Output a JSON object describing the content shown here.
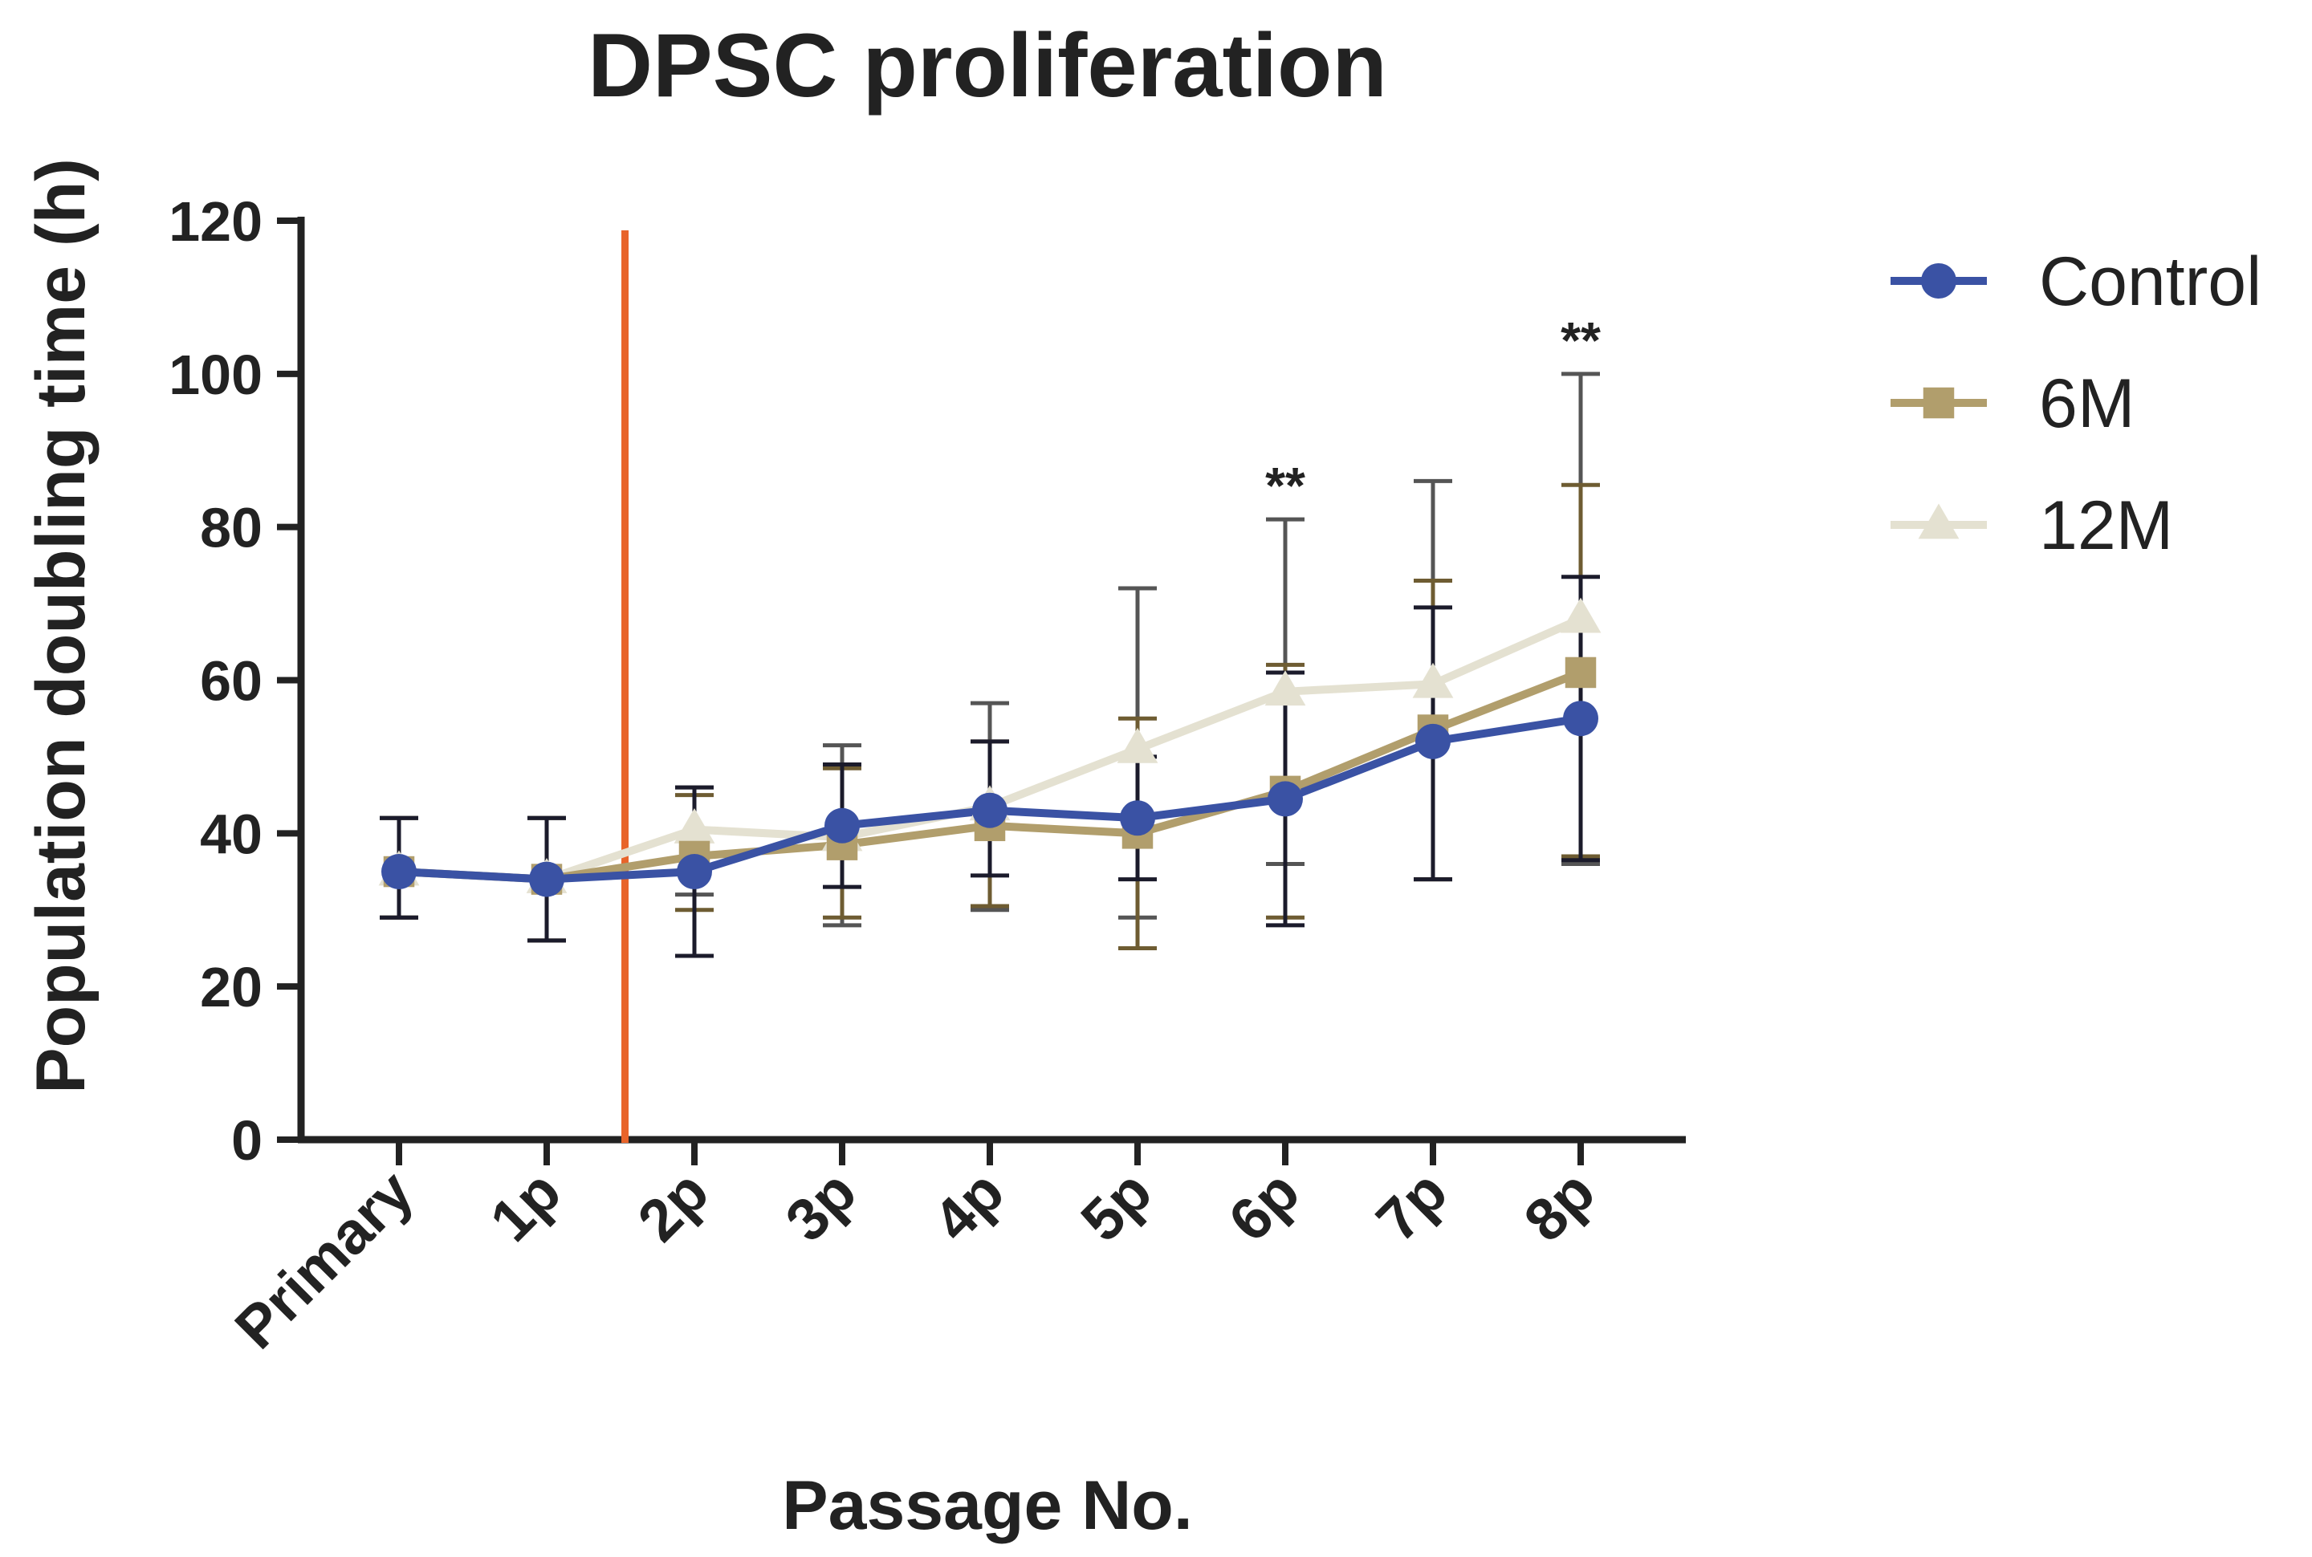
{
  "chart_data": {
    "type": "line",
    "title": "DPSC proliferation",
    "xlabel": "Passage No.",
    "ylabel": "Population doubling time (h)",
    "ylim": [
      0,
      120
    ],
    "yticks": [
      0,
      20,
      40,
      60,
      80,
      100,
      120
    ],
    "categories": [
      "Primary",
      "1p",
      "2p",
      "3p",
      "4p",
      "5p",
      "6p",
      "7p",
      "8p"
    ],
    "vline_after_category": "1p",
    "vline_color": "#e8642a",
    "series": [
      {
        "name": "12M",
        "color": "#e4e1d1",
        "err_color": "#555555",
        "marker": "triangle",
        "values": [
          35,
          34,
          40.5,
          39.5,
          43.5,
          51,
          58.5,
          59.5,
          68
        ],
        "err_low": [
          29,
          26,
          32,
          28,
          30,
          29,
          36,
          34,
          36
        ],
        "err_high": [
          42,
          42,
          46,
          51.5,
          57,
          72,
          81,
          86,
          100
        ]
      },
      {
        "name": "6M",
        "color": "#b19e6c",
        "err_color": "#6e5c32",
        "marker": "square",
        "values": [
          35,
          34,
          37,
          38.5,
          41,
          40,
          45.5,
          53.5,
          61
        ],
        "err_low": [
          29,
          26,
          30,
          29,
          30.5,
          25,
          29,
          34,
          37
        ],
        "err_high": [
          42,
          42,
          45,
          48.5,
          52,
          55,
          62,
          73,
          85.5
        ]
      },
      {
        "name": "Control",
        "color": "#3a52a4",
        "err_color": "#1b1b2b",
        "marker": "circle",
        "values": [
          35,
          34,
          35,
          41,
          43,
          42,
          44.5,
          52,
          55
        ],
        "err_low": [
          29,
          26,
          24,
          33,
          34.5,
          34,
          28,
          34,
          36.5
        ],
        "err_high": [
          42,
          42,
          46,
          49,
          52,
          50,
          61,
          69.5,
          73.5
        ]
      }
    ],
    "legend_order": [
      "Control",
      "6M",
      "12M"
    ],
    "legend_position": "top-right",
    "annotations": [
      {
        "category": "6p",
        "text": "**"
      },
      {
        "category": "8p",
        "text": "**"
      }
    ]
  }
}
